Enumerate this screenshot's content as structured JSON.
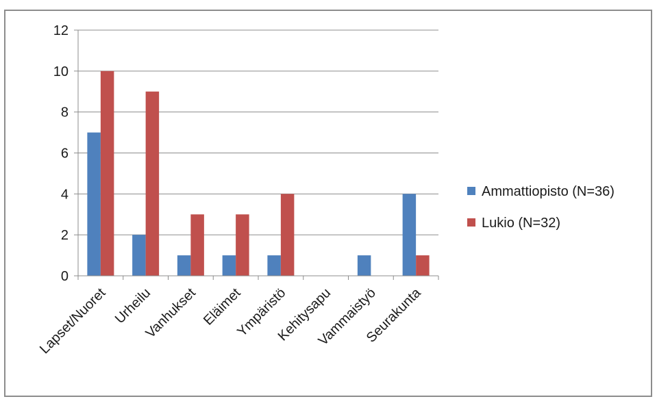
{
  "chart_data": {
    "type": "bar",
    "categories": [
      "Lapset/Nuoret",
      "Urheilu",
      "Vanhukset",
      "Eläimet",
      "Ympäristö",
      "Kehitysapu",
      "Vammaistyö",
      "Seurakunta"
    ],
    "series": [
      {
        "name": "Ammattiopisto (N=36)",
        "color": "#4f81bd",
        "values": [
          7,
          2,
          1,
          1,
          1,
          0,
          1,
          4
        ]
      },
      {
        "name": "Lukio (N=32)",
        "color": "#c0504d",
        "values": [
          10,
          9,
          3,
          3,
          4,
          0,
          0,
          1
        ]
      }
    ],
    "y_ticks": [
      "0",
      "2",
      "4",
      "6",
      "8",
      "10",
      "12"
    ],
    "ylim": [
      0,
      12
    ],
    "grid": true,
    "legend_position": "right"
  }
}
